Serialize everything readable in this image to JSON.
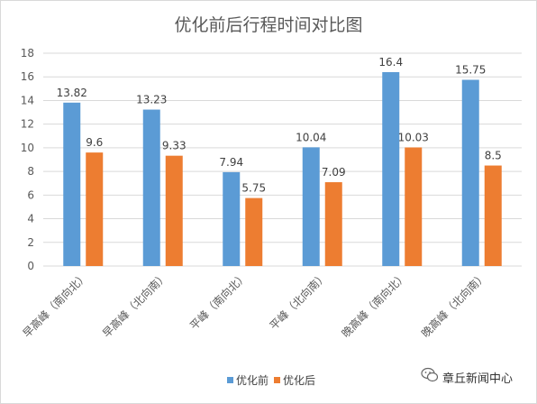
{
  "chart_data": {
    "type": "bar",
    "title": "优化前后行程时间对比图",
    "categories": [
      "早高峰（南向北）",
      "早高峰（北向南）",
      "平峰（南向北）",
      "平峰（北向南）",
      "晚高峰（南向北）",
      "晚高峰（北向南）"
    ],
    "series": [
      {
        "name": "优化前",
        "values": [
          13.82,
          13.23,
          7.94,
          10.04,
          16.4,
          15.75
        ],
        "labels": [
          "13.82",
          "13.23",
          "7.94",
          "10.04",
          "16.4",
          "15.75"
        ],
        "color": "#5b9bd5"
      },
      {
        "name": "优化后",
        "values": [
          9.6,
          9.33,
          5.75,
          7.09,
          10.03,
          8.5
        ],
        "labels": [
          "9.6",
          "9.33",
          "5.75",
          "7.09",
          "10.03",
          "8.5"
        ],
        "color": "#ed7d31"
      }
    ],
    "ylim": [
      0,
      18
    ],
    "yticks": [
      0,
      2,
      4,
      6,
      8,
      10,
      12,
      14,
      16,
      18
    ],
    "grid": true,
    "legend_position": "bottom"
  },
  "watermark": {
    "text": "章丘新闻中心",
    "icon": "wechat-icon"
  }
}
